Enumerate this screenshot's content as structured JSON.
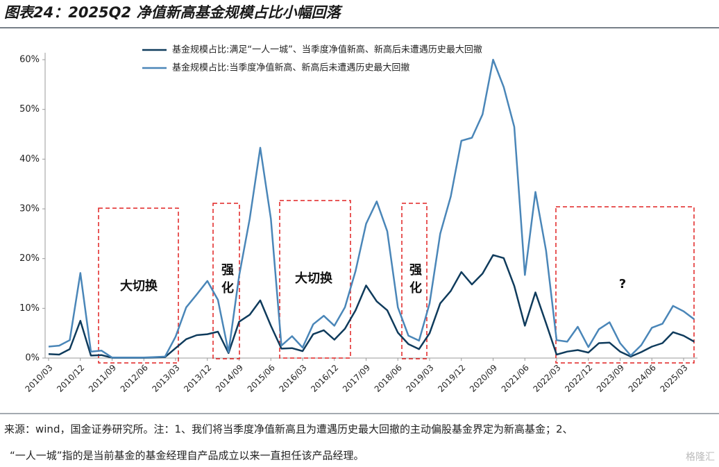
{
  "chart_data": {
    "type": "line",
    "title": "图表24：2025Q2 净值新高基金规模占比小幅回落",
    "categories": [
      "2010/03",
      null,
      null,
      "2010/12",
      null,
      null,
      "2011/09",
      null,
      null,
      "2012/06",
      null,
      null,
      "2013/03",
      null,
      null,
      "2013/12",
      null,
      null,
      "2014/09",
      null,
      null,
      "2015/06",
      null,
      null,
      "2016/03",
      null,
      null,
      "2016/12",
      null,
      null,
      "2017/09",
      null,
      null,
      "2018/06",
      null,
      null,
      "2019/03",
      null,
      null,
      "2019/12",
      null,
      null,
      "2020/09",
      null,
      null,
      "2021/06",
      null,
      null,
      "2022/03",
      null,
      null,
      "2022/12",
      null,
      null,
      "2023/09",
      null,
      null,
      "2024/06",
      null,
      null,
      "2025/03",
      null
    ],
    "series": [
      {
        "name": "基金规模占比:满足“一人一城”、当季度净值新高、新高后未遭遇历史最大回撤",
        "color": "#0f3b5c",
        "values": [
          0.8,
          0.7,
          1.8,
          7.5,
          0.5,
          0.6,
          0.05,
          0.05,
          0.05,
          0.05,
          0.1,
          0.2,
          2.0,
          3.8,
          4.6,
          4.8,
          5.3,
          1.0,
          7.3,
          8.7,
          11.6,
          6.5,
          1.9,
          2.0,
          1.4,
          4.8,
          5.6,
          3.7,
          5.9,
          9.6,
          14.6,
          11.4,
          9.6,
          5.1,
          2.8,
          1.8,
          5.0,
          11,
          13.5,
          17.3,
          14.8,
          17,
          20.7,
          20.1,
          14.5,
          6.5,
          13.2,
          7.0,
          0.7,
          1.3,
          1.6,
          1.1,
          3.0,
          3.1,
          1.3,
          0.3,
          1.2,
          2.3,
          3.0,
          5.2,
          4.5,
          3.3
        ]
      },
      {
        "name": "基金规模占比:当季度净值新高、新高后未遭遇历史最大回撤",
        "color": "#4a86b8",
        "values": [
          2.3,
          2.5,
          3.6,
          17.1,
          1.3,
          1.5,
          0.1,
          0.1,
          0.1,
          0.1,
          0.2,
          0.3,
          4.3,
          10.2,
          12.8,
          15.5,
          11.7,
          1.2,
          16.5,
          28,
          42.3,
          28,
          2.5,
          4.4,
          2.1,
          6.8,
          8.5,
          6.5,
          10.2,
          17.5,
          27,
          31.5,
          25.5,
          10.2,
          4.5,
          3.5,
          11,
          25,
          32.5,
          43.7,
          44.3,
          49,
          60,
          54.5,
          46.5,
          16.7,
          33.4,
          21.6,
          3.6,
          3.3,
          6.3,
          2.2,
          5.8,
          7.2,
          3.0,
          0.5,
          2.6,
          6.1,
          6.9,
          10.5,
          9.4,
          7.8
        ]
      }
    ],
    "ylim": [
      0,
      60
    ],
    "yticks": [
      {
        "value": 0,
        "label": "0%"
      },
      {
        "value": 10,
        "label": "10%"
      },
      {
        "value": 20,
        "label": "20%"
      },
      {
        "value": 30,
        "label": "30%"
      },
      {
        "value": 40,
        "label": "40%"
      },
      {
        "value": 50,
        "label": "50%"
      },
      {
        "value": 60,
        "label": "60%"
      }
    ],
    "annotations": [
      "大切换",
      "强化",
      "大切换",
      "强化",
      "?"
    ],
    "source_note": [
      "来源：wind，国金证券研究所。注：1、我们将当季度净值新高且为遭遇历史最大回撤的主动偏股基金界定为新高基金；2、",
      "“一人一城”指的是当前基金的基金经理自产品成立以来一直担任该产品经理。"
    ],
    "watermark": "格隆汇"
  }
}
